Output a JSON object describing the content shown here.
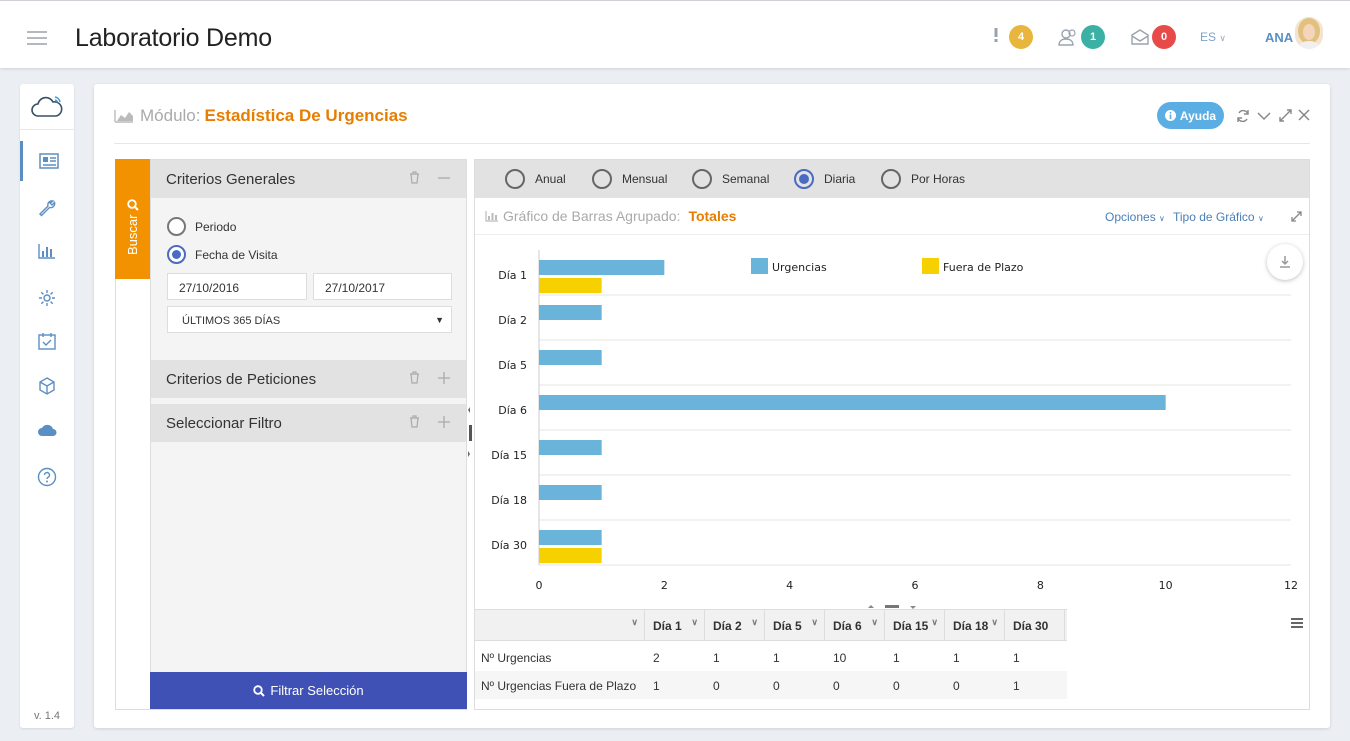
{
  "header": {
    "app_title": "Laboratorio Demo",
    "alerts_count": "4",
    "users_count": "1",
    "messages_count": "0",
    "language": "ES",
    "user_name": "ANA",
    "colors": {
      "alerts": "#e8b63d",
      "users": "#3bb0a4",
      "messages": "#e84a4a"
    }
  },
  "sidebar": {
    "items": [
      "dashboard-icon",
      "wrench-icon",
      "bar-chart-icon",
      "gear-icon",
      "calendar-check-icon",
      "cube-icon",
      "cloud-icon",
      "help-icon"
    ],
    "version": "v. 1.4"
  },
  "module": {
    "label": "Módulo:",
    "name": "Estadística De Urgencias",
    "help_label": "Ayuda"
  },
  "search_tab": {
    "label": "Buscar"
  },
  "filters": {
    "general": {
      "title": "Criterios Generales",
      "radio_periodo": "Periodo",
      "radio_fecha": "Fecha de Visita",
      "selected": "Fecha de Visita",
      "date_from": "27/10/2016",
      "date_to": "27/10/2017",
      "range_select": "ÚLTIMOS 365 DÍAS"
    },
    "peticiones_title": "Criterios de Peticiones",
    "filtro_title": "Seleccionar Filtro",
    "apply_label": "Filtrar Selección"
  },
  "granularity": {
    "options": [
      "Anual",
      "Mensual",
      "Semanal",
      "Diaria",
      "Por Horas"
    ],
    "selected": "Diaria"
  },
  "chart_header": {
    "label": "Gráfico de Barras Agrupado:",
    "value": "Totales",
    "options_label": "Opciones",
    "type_label": "Tipo de Gráfico"
  },
  "chart_data": {
    "type": "bar",
    "orientation": "horizontal",
    "categories": [
      "Día 1",
      "Día 2",
      "Día 5",
      "Día 6",
      "Día 15",
      "Día 18",
      "Día 30"
    ],
    "series": [
      {
        "name": "Urgencias",
        "color": "#6ab4dc",
        "values": [
          2,
          1,
          1,
          10,
          1,
          1,
          1
        ]
      },
      {
        "name": "Fuera de Plazo",
        "color": "#f7d000",
        "values": [
          1,
          0,
          0,
          0,
          0,
          0,
          1
        ]
      }
    ],
    "xlim": [
      0,
      12
    ],
    "xticks": [
      0,
      2,
      4,
      6,
      8,
      10,
      12
    ],
    "grid": true,
    "legend": "top"
  },
  "table": {
    "headers": [
      "",
      "Día 1",
      "Día 2",
      "Día 5",
      "Día 6",
      "Día 15",
      "Día 18",
      "Día 30"
    ],
    "rows": [
      {
        "label": "Nº Urgencias",
        "values": [
          "2",
          "1",
          "1",
          "10",
          "1",
          "1",
          "1"
        ]
      },
      {
        "label": "Nº Urgencias Fuera de Plazo",
        "values": [
          "1",
          "0",
          "0",
          "0",
          "0",
          "0",
          "1"
        ]
      }
    ]
  }
}
